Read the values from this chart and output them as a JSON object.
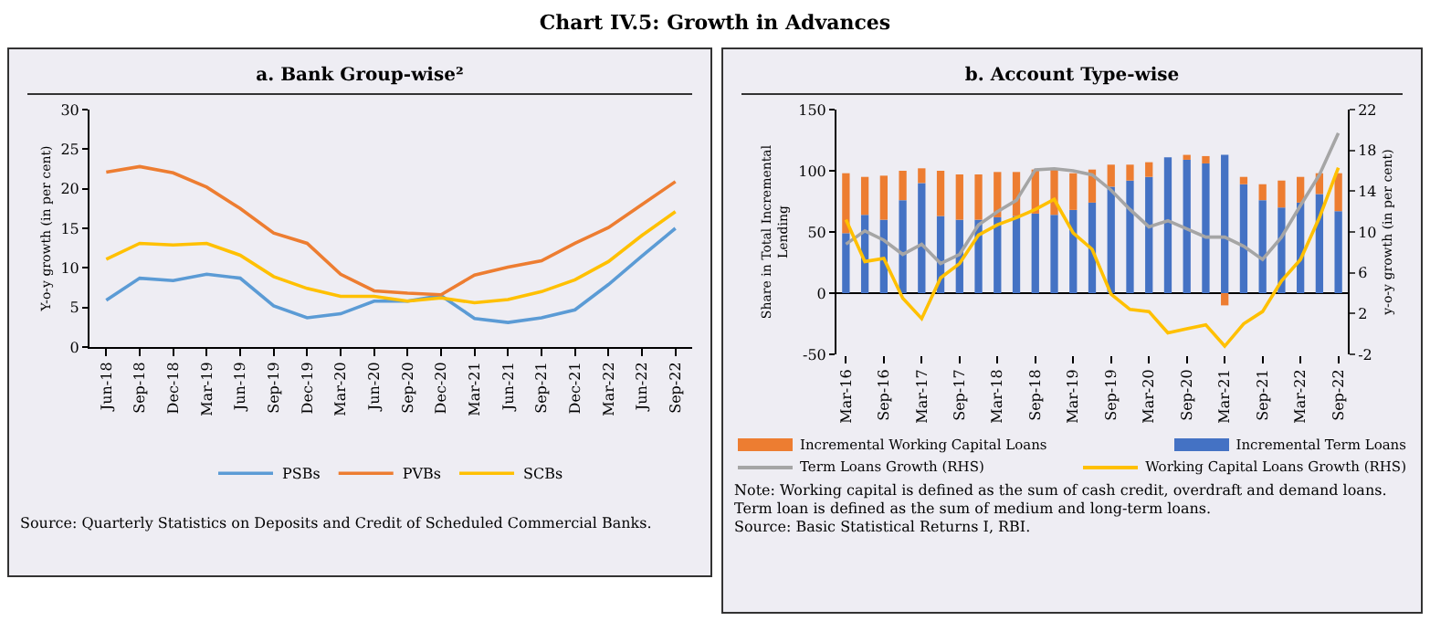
{
  "chart_data": [
    {
      "type": "line",
      "title": "a. Bank Group-wise²",
      "ylabel": "Y-o-y growth (in per cent)",
      "categories": [
        "Jun-18",
        "Sep-18",
        "Dec-18",
        "Mar-19",
        "Jun-19",
        "Sep-19",
        "Dec-19",
        "Mar-20",
        "Jun-20",
        "Sep-20",
        "Dec-20",
        "Mar-21",
        "Jun-21",
        "Sep-21",
        "Dec-21",
        "Mar-22",
        "Jun-22",
        "Sep-22"
      ],
      "series": [
        {
          "name": "PSBs",
          "color": "#5b9bd5",
          "values": [
            5.9,
            8.7,
            8.4,
            9.2,
            8.7,
            5.2,
            3.7,
            4.2,
            5.8,
            5.8,
            6.5,
            3.6,
            3.1,
            3.7,
            4.7,
            7.9,
            11.5,
            15.0
          ]
        },
        {
          "name": "PVBs",
          "color": "#ed7d31",
          "values": [
            22.1,
            22.8,
            22.0,
            20.2,
            17.5,
            14.4,
            13.1,
            9.2,
            7.1,
            6.8,
            6.6,
            9.1,
            10.1,
            10.9,
            13.1,
            15.1,
            18.0,
            20.9
          ]
        },
        {
          "name": "SCBs",
          "color": "#ffc000",
          "values": [
            11.1,
            13.1,
            12.9,
            13.1,
            11.6,
            8.9,
            7.4,
            6.4,
            6.4,
            5.8,
            6.2,
            5.6,
            6.0,
            7.0,
            8.5,
            10.8,
            14.1,
            17.1
          ]
        }
      ],
      "ylim": [
        0,
        30
      ],
      "yticks": [
        0,
        5,
        10,
        15,
        20,
        25,
        30
      ],
      "legend": "bottom",
      "marker": "none",
      "annotations": [
        "Chart IV.5: Growth in Advances",
        "Source: Quarterly Statistics on Deposits and Credit of Scheduled Commercial Banks."
      ]
    },
    {
      "type": "bar",
      "stacked": true,
      "title": "b. Account Type-wise",
      "ylabel": "Share in Total Incremental Lending",
      "y2label": "y-o-y growth (in per cent)",
      "categories": [
        "Mar-16",
        null,
        "Sep-16",
        null,
        "Mar-17",
        null,
        "Sep-17",
        null,
        "Mar-18",
        null,
        "Sep-18",
        null,
        "Mar-19",
        null,
        "Sep-19",
        null,
        "Mar-20",
        null,
        "Sep-20",
        null,
        "Mar-21",
        null,
        "Sep-21",
        null,
        "Mar-22",
        null,
        "Sep-22"
      ],
      "series": [
        {
          "name": "Incremental Term Loans",
          "color": "#4472c4",
          "values": [
            49,
            64,
            60,
            76,
            90,
            63,
            60,
            60,
            62,
            63,
            65,
            64,
            68,
            74,
            87,
            92,
            95,
            111,
            109,
            106,
            113,
            89,
            76,
            70,
            74,
            81,
            67
          ]
        },
        {
          "name": "Incremental Working Capital Loans",
          "color": "#ed7d31",
          "values": [
            49,
            31,
            36,
            24,
            12,
            37,
            37,
            37,
            37,
            36,
            36,
            37,
            30,
            27,
            18,
            13,
            12,
            0,
            4,
            6,
            -10,
            6,
            13,
            22,
            21,
            17,
            31
          ]
        },
        {
          "name": "Term Loans Growth (RHS)",
          "type": "line",
          "axis": "y2",
          "color": "#a5a5a5",
          "values": [
            8.8,
            10.1,
            9.2,
            7.8,
            8.8,
            6.9,
            7.8,
            10.7,
            12.0,
            13.1,
            16.1,
            16.2,
            16.0,
            15.6,
            14.1,
            12.2,
            10.5,
            11.1,
            10.3,
            9.5,
            9.5,
            8.6,
            7.3,
            9.5,
            12.6,
            15.6,
            19.7
          ]
        },
        {
          "name": "Working Capital Loans Growth (RHS)",
          "type": "line",
          "axis": "y2",
          "color": "#ffc000",
          "values": [
            11.2,
            7.1,
            7.4,
            3.5,
            1.5,
            5.5,
            6.9,
            9.7,
            10.7,
            11.4,
            12.2,
            13.2,
            9.9,
            8.3,
            3.9,
            2.4,
            2.2,
            0.1,
            0.5,
            0.9,
            -1.2,
            1.0,
            2.2,
            5.2,
            7.3,
            11.4,
            16.3
          ]
        }
      ],
      "ylim": [
        -50,
        150
      ],
      "yticks": [
        -50,
        0,
        50,
        100,
        150
      ],
      "y2lim": [
        -2,
        22
      ],
      "y2ticks": [
        -2,
        2,
        6,
        10,
        14,
        18,
        22
      ],
      "legend": "bottom",
      "marker": "none",
      "annotations": [
        "Note: Working capital is defined as the sum of cash credit, overdraft and demand loans. Term loan is defined as the sum of medium and long-term loans.",
        "Source: Basic Statistical Returns I, RBI."
      ]
    }
  ]
}
